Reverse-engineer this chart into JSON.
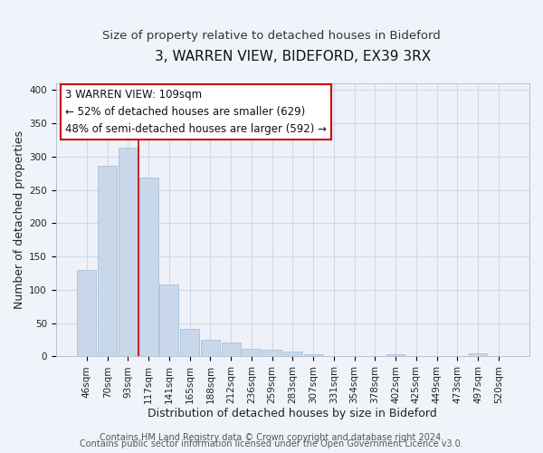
{
  "title": "3, WARREN VIEW, BIDEFORD, EX39 3RX",
  "subtitle": "Size of property relative to detached houses in Bideford",
  "xlabel": "Distribution of detached houses by size in Bideford",
  "ylabel": "Number of detached properties",
  "bar_labels": [
    "46sqm",
    "70sqm",
    "93sqm",
    "117sqm",
    "141sqm",
    "165sqm",
    "188sqm",
    "212sqm",
    "236sqm",
    "259sqm",
    "283sqm",
    "307sqm",
    "331sqm",
    "354sqm",
    "378sqm",
    "402sqm",
    "425sqm",
    "449sqm",
    "473sqm",
    "497sqm",
    "520sqm"
  ],
  "bar_values": [
    130,
    286,
    314,
    268,
    108,
    41,
    25,
    21,
    11,
    10,
    8,
    3,
    0,
    0,
    0,
    3,
    0,
    0,
    0,
    5,
    0
  ],
  "bar_color": "#c8d8ea",
  "bar_edgecolor": "#a8c0d8",
  "vline_position": 2.5,
  "vline_color": "#cc0000",
  "ylim": [
    0,
    410
  ],
  "yticks": [
    0,
    50,
    100,
    150,
    200,
    250,
    300,
    350,
    400
  ],
  "annotation_title": "3 WARREN VIEW: 109sqm",
  "annotation_line1": "← 52% of detached houses are smaller (629)",
  "annotation_line2": "48% of semi-detached houses are larger (592) →",
  "annotation_box_edgecolor": "#cc0000",
  "footer1": "Contains HM Land Registry data © Crown copyright and database right 2024.",
  "footer2": "Contains public sector information licensed under the Open Government Licence v3.0.",
  "background_color": "#f0f4fa",
  "plot_background": "#eef2f8",
  "grid_color": "#d0d8e8",
  "title_fontsize": 11,
  "subtitle_fontsize": 9.5,
  "axis_label_fontsize": 9,
  "tick_fontsize": 7.5,
  "footer_fontsize": 7,
  "annotation_fontsize": 8.5
}
